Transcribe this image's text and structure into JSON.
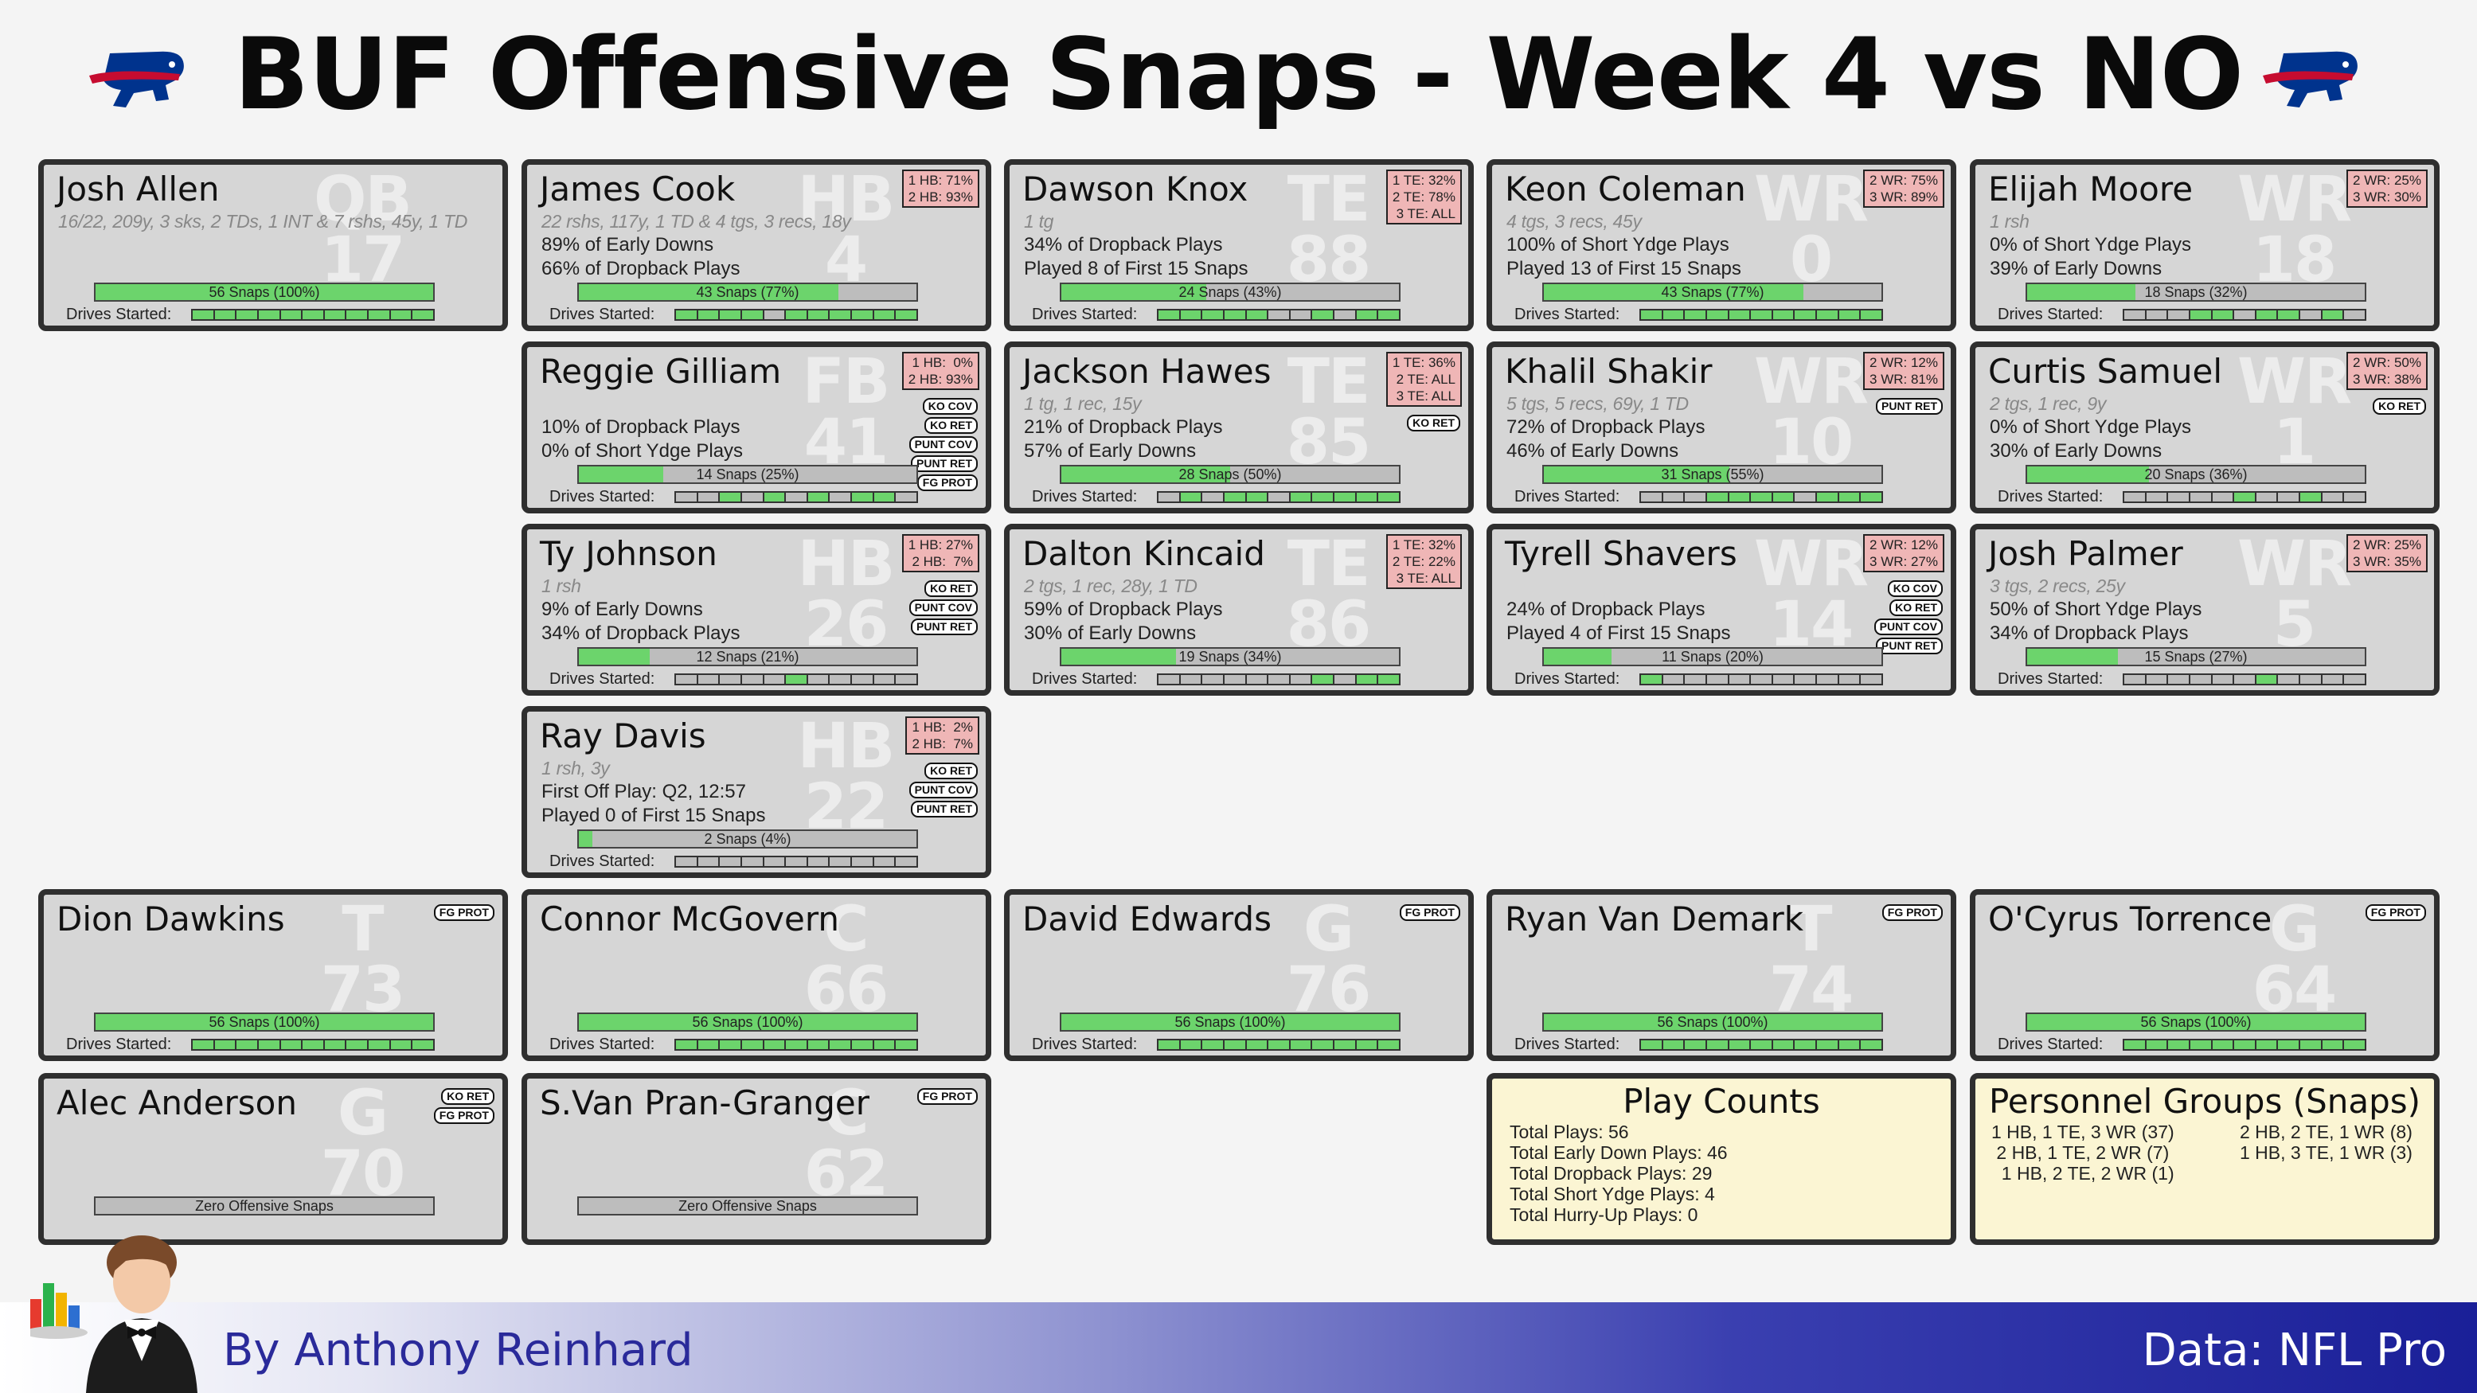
{
  "title": "BUF Offensive Snaps - Week 4 vs NO",
  "drives_label": "Drives Started:",
  "players": [
    {
      "name": "Josh Allen",
      "pos": "QB",
      "num": "17",
      "stat": "16/22, 209y, 3 sks, 2 TDs, 1 INT & 7 rshs, 45y, 1 TD",
      "line1": "",
      "line2": "",
      "align": [],
      "tags": [],
      "snaps": "56 Snaps (100%)",
      "pct": 100,
      "drives": [
        1,
        1,
        1,
        1,
        1,
        1,
        1,
        1,
        1,
        1,
        1
      ]
    },
    {
      "name": "James Cook",
      "pos": "HB",
      "num": "4",
      "stat": "22 rshs, 117y, 1 TD & 4 tgs, 3 recs, 18y",
      "line1": "89% of Early Downs",
      "line2": "66% of Dropback Plays",
      "align": [
        "1 HB: 71%",
        "2 HB: 93%"
      ],
      "tags": [],
      "snaps": "43 Snaps (77%)",
      "pct": 77,
      "drives": [
        1,
        1,
        1,
        1,
        0,
        1,
        1,
        1,
        1,
        1,
        1
      ]
    },
    {
      "name": "Dawson Knox",
      "pos": "TE",
      "num": "88",
      "stat": "1 tg",
      "line1": "34% of Dropback Plays",
      "line2": "Played 8 of First 15 Snaps",
      "align": [
        "1 TE: 32%",
        "2 TE: 78%",
        "3 TE: ALL"
      ],
      "tags": [],
      "snaps": "24 Snaps (43%)",
      "pct": 43,
      "drives": [
        1,
        1,
        1,
        1,
        1,
        0,
        0,
        1,
        0,
        1,
        1
      ]
    },
    {
      "name": "Keon Coleman",
      "pos": "WR",
      "num": "0",
      "stat": "4 tgs, 3 recs, 45y",
      "line1": "100% of Short Ydge Plays",
      "line2": "Played 13 of First 15 Snaps",
      "align": [
        "2 WR: 75%",
        "3 WR: 89%"
      ],
      "tags": [],
      "snaps": "43 Snaps (77%)",
      "pct": 77,
      "drives": [
        1,
        1,
        1,
        1,
        1,
        1,
        1,
        1,
        1,
        1,
        1
      ]
    },
    {
      "name": "Elijah Moore",
      "pos": "WR",
      "num": "18",
      "stat": "1 rsh",
      "line1": "0% of Short Ydge Plays",
      "line2": "39% of Early Downs",
      "align": [
        "2 WR: 25%",
        "3 WR: 30%"
      ],
      "tags": [],
      "snaps": "18 Snaps (32%)",
      "pct": 32,
      "drives": [
        0,
        0,
        0,
        1,
        1,
        0,
        1,
        1,
        0,
        1,
        0
      ]
    },
    {
      "name": "Reggie Gilliam",
      "pos": "FB",
      "num": "41",
      "stat": "",
      "line1": "10% of Dropback Plays",
      "line2": "0% of Short Ydge Plays",
      "align": [
        "1 HB:  0%",
        "2 HB: 93%"
      ],
      "tags": [
        "KO COV",
        "KO RET",
        "PUNT COV",
        "PUNT RET",
        "FG PROT"
      ],
      "snaps": "14 Snaps (25%)",
      "pct": 25,
      "drives": [
        0,
        0,
        1,
        0,
        1,
        0,
        1,
        0,
        1,
        1,
        0
      ]
    },
    {
      "name": "Jackson Hawes",
      "pos": "TE",
      "num": "85",
      "stat": "1 tg, 1 rec, 15y",
      "line1": "21% of Dropback Plays",
      "line2": "57% of Early Downs",
      "align": [
        "1 TE: 36%",
        "2 TE: ALL",
        "3 TE: ALL"
      ],
      "tags": [
        "KO RET"
      ],
      "snaps": "28 Snaps (50%)",
      "pct": 50,
      "drives": [
        0,
        1,
        0,
        1,
        1,
        0,
        1,
        1,
        1,
        1,
        1
      ]
    },
    {
      "name": "Khalil Shakir",
      "pos": "WR",
      "num": "10",
      "stat": "5 tgs, 5 recs, 69y, 1 TD",
      "line1": "72% of Dropback Plays",
      "line2": "46% of Early Downs",
      "align": [
        "2 WR: 12%",
        "3 WR: 81%"
      ],
      "tags": [
        "PUNT RET"
      ],
      "snaps": "31 Snaps (55%)",
      "pct": 55,
      "drives": [
        0,
        0,
        0,
        1,
        1,
        1,
        1,
        0,
        1,
        1,
        1
      ]
    },
    {
      "name": "Curtis Samuel",
      "pos": "WR",
      "num": "1",
      "stat": "2 tgs, 1 rec, 9y",
      "line1": "0% of Short Ydge Plays",
      "line2": "30% of Early Downs",
      "align": [
        "2 WR: 50%",
        "3 WR: 38%"
      ],
      "tags": [
        "KO RET"
      ],
      "snaps": "20 Snaps (36%)",
      "pct": 36,
      "drives": [
        0,
        0,
        0,
        0,
        0,
        1,
        0,
        0,
        1,
        0,
        0
      ]
    },
    {
      "name": "Ty Johnson",
      "pos": "HB",
      "num": "26",
      "stat": "1 rsh",
      "line1": "9% of Early Downs",
      "line2": "34% of Dropback Plays",
      "align": [
        "1 HB: 27%",
        "2 HB:  7%"
      ],
      "tags": [
        "KO RET",
        "PUNT COV",
        "PUNT RET"
      ],
      "snaps": "12 Snaps (21%)",
      "pct": 21,
      "drives": [
        0,
        0,
        0,
        0,
        0,
        1,
        0,
        0,
        0,
        0,
        0
      ]
    },
    {
      "name": "Dalton Kincaid",
      "pos": "TE",
      "num": "86",
      "stat": "2 tgs, 1 rec, 28y, 1 TD",
      "line1": "59% of Dropback Plays",
      "line2": "30% of Early Downs",
      "align": [
        "1 TE: 32%",
        "2 TE: 22%",
        "3 TE: ALL"
      ],
      "tags": [],
      "snaps": "19 Snaps (34%)",
      "pct": 34,
      "drives": [
        0,
        0,
        0,
        0,
        0,
        0,
        0,
        1,
        0,
        1,
        1
      ]
    },
    {
      "name": "Tyrell Shavers",
      "pos": "WR",
      "num": "14",
      "stat": "",
      "line1": "24% of Dropback Plays",
      "line2": "Played 4 of First 15 Snaps",
      "align": [
        "2 WR: 12%",
        "3 WR: 27%"
      ],
      "tags": [
        "KO COV",
        "KO RET",
        "PUNT COV",
        "PUNT RET"
      ],
      "snaps": "11 Snaps (20%)",
      "pct": 20,
      "drives": [
        1,
        0,
        0,
        0,
        0,
        0,
        0,
        0,
        0,
        0,
        0
      ]
    },
    {
      "name": "Josh Palmer",
      "pos": "WR",
      "num": "5",
      "stat": "3 tgs, 2 recs, 25y",
      "line1": "50% of Short Ydge Plays",
      "line2": "34% of Dropback Plays",
      "align": [
        "2 WR: 25%",
        "3 WR: 35%"
      ],
      "tags": [],
      "snaps": "15 Snaps (27%)",
      "pct": 27,
      "drives": [
        0,
        0,
        0,
        0,
        0,
        0,
        1,
        0,
        0,
        0,
        0
      ]
    },
    {
      "name": "Ray Davis",
      "pos": "HB",
      "num": "22",
      "stat": "1 rsh, 3y",
      "line1": "First Off Play: Q2, 12:57",
      "line2": "Played 0 of First 15 Snaps",
      "align": [
        "1 HB:  2%",
        "2 HB:  7%"
      ],
      "tags": [
        "KO RET",
        "PUNT COV",
        "PUNT RET"
      ],
      "snaps": "2 Snaps (4%)",
      "pct": 4,
      "drives": [
        0,
        0,
        0,
        0,
        0,
        0,
        0,
        0,
        0,
        0,
        0
      ]
    },
    {
      "name": "Dion Dawkins",
      "pos": "T",
      "num": "73",
      "stat": "",
      "line1": "",
      "line2": "",
      "align": [],
      "tags": [
        "FG PROT"
      ],
      "snaps": "56 Snaps (100%)",
      "pct": 100,
      "drives": [
        1,
        1,
        1,
        1,
        1,
        1,
        1,
        1,
        1,
        1,
        1
      ]
    },
    {
      "name": "Connor McGovern",
      "pos": "C",
      "num": "66",
      "stat": "",
      "line1": "",
      "line2": "",
      "align": [],
      "tags": [],
      "snaps": "56 Snaps (100%)",
      "pct": 100,
      "drives": [
        1,
        1,
        1,
        1,
        1,
        1,
        1,
        1,
        1,
        1,
        1
      ]
    },
    {
      "name": "David Edwards",
      "pos": "G",
      "num": "76",
      "stat": "",
      "line1": "",
      "line2": "",
      "align": [],
      "tags": [
        "FG PROT"
      ],
      "snaps": "56 Snaps (100%)",
      "pct": 100,
      "drives": [
        1,
        1,
        1,
        1,
        1,
        1,
        1,
        1,
        1,
        1,
        1
      ]
    },
    {
      "name": "Ryan Van Demark",
      "pos": "T",
      "num": "74",
      "stat": "",
      "line1": "",
      "line2": "",
      "align": [],
      "tags": [
        "FG PROT"
      ],
      "snaps": "56 Snaps (100%)",
      "pct": 100,
      "drives": [
        1,
        1,
        1,
        1,
        1,
        1,
        1,
        1,
        1,
        1,
        1
      ]
    },
    {
      "name": "O'Cyrus Torrence",
      "pos": "G",
      "num": "64",
      "stat": "",
      "line1": "",
      "line2": "",
      "align": [],
      "tags": [
        "FG PROT"
      ],
      "snaps": "56 Snaps (100%)",
      "pct": 100,
      "drives": [
        1,
        1,
        1,
        1,
        1,
        1,
        1,
        1,
        1,
        1,
        1
      ]
    },
    {
      "name": "Alec Anderson",
      "pos": "G",
      "num": "70",
      "stat": "",
      "line1": "",
      "line2": "",
      "align": [],
      "tags": [
        "KO RET",
        "FG PROT"
      ],
      "snaps": "Zero Offensive Snaps",
      "pct": 0,
      "drives": null
    },
    {
      "name": "S.Van Pran-Granger",
      "pos": "C",
      "num": "62",
      "stat": "",
      "line1": "",
      "line2": "",
      "align": [],
      "tags": [
        "FG PROT"
      ],
      "snaps": "Zero Offensive Snaps",
      "pct": 0,
      "drives": null
    }
  ],
  "play_counts": {
    "title": "Play Counts",
    "lines": [
      "Total Plays: 56",
      "Total Early Down Plays: 46",
      "Total Dropback Plays: 29",
      "Total Short Ydge Plays: 4",
      "Total Hurry-Up Plays: 0"
    ]
  },
  "personnel": {
    "title": "Personnel Groups (Snaps)",
    "left": [
      "1 HB, 1 TE, 3 WR (37)",
      " 2 HB, 1 TE, 2 WR (7)",
      "  1 HB, 2 TE, 2 WR (1)"
    ],
    "right": [
      "2 HB, 2 TE, 1 WR (8)",
      "1 HB, 3 TE, 1 WR (3)"
    ]
  },
  "footer": {
    "byline": "By Anthony Reinhard",
    "source": "Data: NFL Pro"
  },
  "colors": {
    "bar_fill": "#6cd46c",
    "bar_empty": "#bdbdbd",
    "card_bg": "#d6d6d6",
    "align_bg": "#efb6b6",
    "info_bg": "#fbf5d3",
    "bills_blue": "#00338d",
    "bills_red": "#c60c30"
  },
  "chart_data": {
    "type": "bar",
    "title": "BUF Offensive Snaps - Week 4 vs NO",
    "categories": [
      "Josh Allen",
      "James Cook",
      "Dawson Knox",
      "Keon Coleman",
      "Elijah Moore",
      "Reggie Gilliam",
      "Jackson Hawes",
      "Khalil Shakir",
      "Curtis Samuel",
      "Ty Johnson",
      "Dalton Kincaid",
      "Tyrell Shavers",
      "Josh Palmer",
      "Ray Davis",
      "Dion Dawkins",
      "Connor McGovern",
      "David Edwards",
      "Ryan Van Demark",
      "O'Cyrus Torrence",
      "Alec Anderson",
      "S.Van Pran-Granger"
    ],
    "series": [
      {
        "name": "Snaps",
        "values": [
          56,
          43,
          24,
          43,
          18,
          14,
          28,
          31,
          20,
          12,
          19,
          11,
          15,
          2,
          56,
          56,
          56,
          56,
          56,
          0,
          0
        ]
      },
      {
        "name": "Snap %",
        "values": [
          100,
          77,
          43,
          77,
          32,
          25,
          50,
          55,
          36,
          21,
          34,
          20,
          27,
          4,
          100,
          100,
          100,
          100,
          100,
          0,
          0
        ]
      }
    ],
    "ylim": [
      0,
      100
    ]
  }
}
